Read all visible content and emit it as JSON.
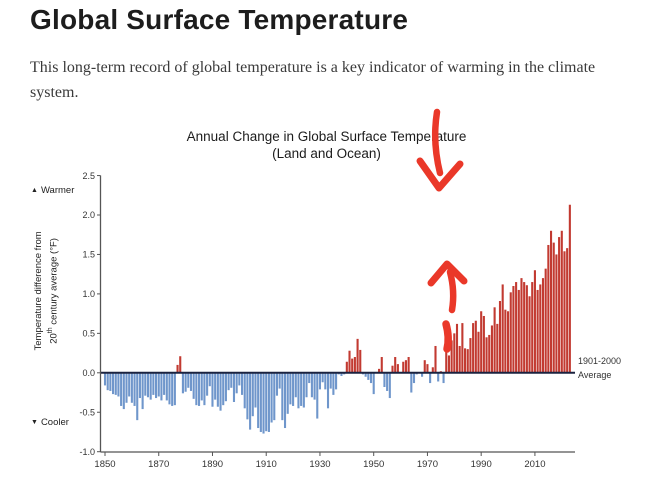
{
  "page": {
    "title": "Global Surface Temperature",
    "intro": "This long-term record of global temperature is a key indicator of warming in the climate system."
  },
  "chart_data": {
    "type": "bar",
    "title": "Annual Change in Global Surface Temperature",
    "subtitle": "(Land and Ocean)",
    "ylabel_line1": "Temperature difference from",
    "ylabel_num": "20",
    "ylabel_sup": "th",
    "ylabel_line2_rest": " century average (°F)",
    "warmer_label": "Warmer",
    "cooler_label": "Cooler",
    "warmer_icon": "▲",
    "cooler_icon": "▼",
    "baseline_label_line1": "1901-2000",
    "baseline_label_line2": "Average",
    "start_year": 1850,
    "end_year": 2023,
    "x_ticks": [
      1850,
      1870,
      1890,
      1910,
      1930,
      1950,
      1970,
      1990,
      2010
    ],
    "y_ticks": [
      2.5,
      2.0,
      1.5,
      1.0,
      0.5,
      0.0,
      -0.5,
      -1.0
    ],
    "ylim": [
      -1.0,
      2.5
    ],
    "grid": false,
    "positive_color": "#c23a31",
    "negative_color": "#6f96cb",
    "zero_line_color": "#1b2340",
    "axis_color": "#555555",
    "annotation_arrow_color": "#ea3829",
    "annotations": [
      {
        "type": "hand-drawn-arrow",
        "direction": "down",
        "points_at_year": 1975
      },
      {
        "type": "hand-drawn-arrow",
        "direction": "up",
        "points_at_year": 1975
      }
    ],
    "values": [
      -0.16,
      -0.22,
      -0.23,
      -0.27,
      -0.28,
      -0.3,
      -0.42,
      -0.46,
      -0.38,
      -0.3,
      -0.38,
      -0.42,
      -0.6,
      -0.32,
      -0.46,
      -0.29,
      -0.31,
      -0.34,
      -0.28,
      -0.32,
      -0.3,
      -0.35,
      -0.28,
      -0.35,
      -0.4,
      -0.42,
      -0.41,
      0.1,
      0.21,
      -0.26,
      -0.24,
      -0.19,
      -0.23,
      -0.33,
      -0.41,
      -0.42,
      -0.35,
      -0.41,
      -0.29,
      -0.17,
      -0.43,
      -0.34,
      -0.43,
      -0.48,
      -0.41,
      -0.36,
      -0.22,
      -0.19,
      -0.37,
      -0.26,
      -0.16,
      -0.28,
      -0.45,
      -0.59,
      -0.72,
      -0.55,
      -0.44,
      -0.7,
      -0.75,
      -0.77,
      -0.74,
      -0.75,
      -0.63,
      -0.6,
      -0.29,
      -0.2,
      -0.6,
      -0.7,
      -0.52,
      -0.4,
      -0.42,
      -0.31,
      -0.45,
      -0.42,
      -0.44,
      -0.31,
      -0.13,
      -0.31,
      -0.34,
      -0.58,
      -0.21,
      -0.12,
      -0.21,
      -0.45,
      -0.2,
      -0.28,
      -0.21,
      -0.02,
      -0.04,
      -0.02,
      0.14,
      0.28,
      0.18,
      0.2,
      0.43,
      0.29,
      -0.02,
      -0.05,
      -0.09,
      -0.13,
      -0.27,
      0.0,
      0.05,
      0.2,
      -0.18,
      -0.23,
      -0.32,
      0.09,
      0.2,
      0.11,
      0.0,
      0.14,
      0.16,
      0.2,
      -0.25,
      -0.13,
      -0.02,
      0.0,
      -0.05,
      0.16,
      0.11,
      -0.13,
      0.07,
      0.34,
      -0.11,
      0.02,
      -0.13,
      0.36,
      0.22,
      0.41,
      0.5,
      0.62,
      0.34,
      0.63,
      0.31,
      0.3,
      0.44,
      0.63,
      0.66,
      0.52,
      0.78,
      0.72,
      0.45,
      0.48,
      0.6,
      0.83,
      0.62,
      0.91,
      1.12,
      0.8,
      0.78,
      1.02,
      1.1,
      1.15,
      1.05,
      1.2,
      1.15,
      1.11,
      0.97,
      1.15,
      1.3,
      1.05,
      1.12,
      1.2,
      1.32,
      1.62,
      1.8,
      1.65,
      1.5,
      1.72,
      1.8,
      1.54,
      1.58,
      2.13
    ]
  }
}
